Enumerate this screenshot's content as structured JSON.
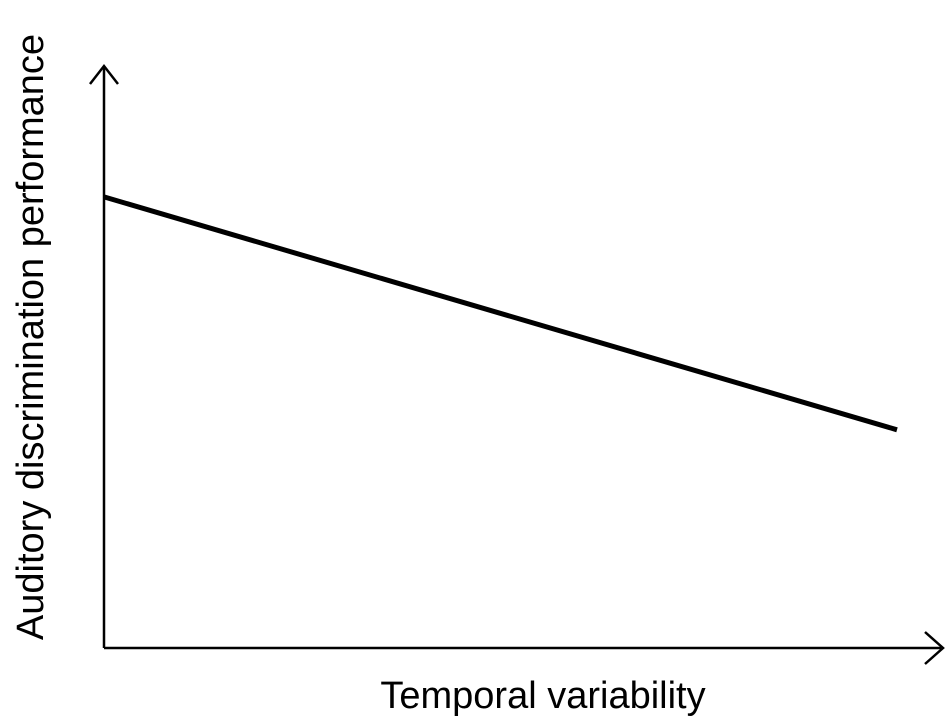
{
  "chart_data": {
    "type": "line",
    "title": "",
    "xlabel": "Temporal variability",
    "ylabel": "Auditory discrimination performance",
    "xlim": [
      0,
      1
    ],
    "ylim": [
      0,
      1
    ],
    "grid": false,
    "x_ticks": [],
    "y_ticks": [],
    "series": [
      {
        "x": [
          0,
          1
        ],
        "y": [
          0.775,
          0.375
        ]
      }
    ],
    "colors": {
      "line": "#000000",
      "axes": "#000000",
      "background": "#ffffff"
    }
  }
}
